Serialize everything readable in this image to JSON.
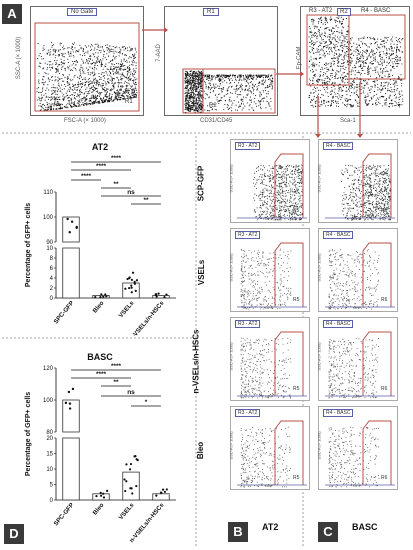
{
  "panels": {
    "A": "A",
    "B": "B",
    "C": "C",
    "D": "D"
  },
  "facs_top": [
    {
      "gate_label": "No Gate",
      "region": "R1",
      "xaxis": "FSC-A (× 1000)",
      "yaxis": "SSC-A (× 1000)"
    },
    {
      "gate_label": "R1",
      "region": "R2",
      "xaxis": "CD31/CD45",
      "yaxis": "7-AAD"
    },
    {
      "gate_label_left": "R3 - AT2",
      "gate_label_right": "R4 - BASC",
      "gate_label_mid": "R2",
      "xaxis": "Sca-1",
      "yaxis": "Ep-CAM"
    }
  ],
  "grid": {
    "rows": [
      "SCP-GFP",
      "VSELs",
      "n-VSELs/n-HSCs",
      "Bleo"
    ],
    "col_labels": [
      "AT2",
      "BASC"
    ],
    "col_gates": [
      "R3 - AT2",
      "R4 - BASC"
    ],
    "col_regions": [
      "R5",
      "R6"
    ],
    "xaxis": "GFP",
    "yaxis": "SSC-A (× 1000)"
  },
  "chart_data": [
    {
      "type": "bar",
      "title": "AT2",
      "ylabel": "Percentage of GFP+ cells",
      "categories": [
        "SPC-GFP",
        "Bleo",
        "VSELs",
        "n-VSELs/n-HSCs"
      ],
      "values": [
        100,
        0.5,
        3,
        0.5
      ],
      "y_upper_ticks": [
        90,
        100,
        110
      ],
      "y_lower_ticks": [
        0,
        2,
        4,
        6,
        8,
        10
      ],
      "significance": [
        "****",
        "****",
        "****",
        "**",
        "ns",
        "**"
      ]
    },
    {
      "type": "bar",
      "title": "BASC",
      "ylabel": "Percentage of GFP+ cells",
      "categories": [
        "SPC-GFP",
        "Bleo",
        "VSELs",
        "n-VSELs/n-HSCs"
      ],
      "values": [
        100,
        2,
        9,
        2
      ],
      "y_upper_ticks": [
        80,
        100,
        120
      ],
      "y_lower_ticks": [
        0,
        5,
        10,
        15,
        20
      ],
      "significance": [
        "****",
        "****",
        "**",
        "ns",
        "*"
      ]
    }
  ]
}
